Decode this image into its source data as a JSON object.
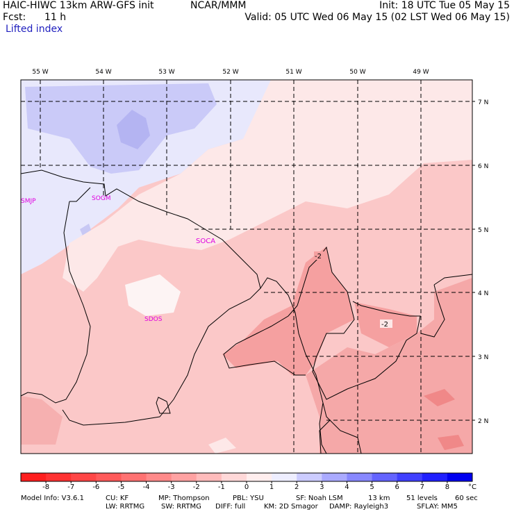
{
  "header": {
    "title_left": "HAIC-HIWC 13km ARW-GFS init",
    "org": "NCAR/MMM",
    "init": "Init: 18 UTC Tue 05 May 15",
    "fcst_label": "Fcst:",
    "fcst_value": "11 h",
    "valid": "Valid: 05 UTC Wed 06 May 15 (02 LST Wed 06 May 15)",
    "field": "Lifted index"
  },
  "map": {
    "lon_labels": [
      "55 W",
      "54 W",
      "53 W",
      "52 W",
      "51 W",
      "50 W",
      "49 W"
    ],
    "lat_labels": [
      "7 N",
      "6 N",
      "5 N",
      "4 N",
      "3 N",
      "2 N"
    ],
    "stations": [
      "SMJP",
      "SOGM",
      "SOCA",
      "SDOS"
    ],
    "contour_labels": [
      "-2",
      "-2"
    ]
  },
  "colorbar": {
    "ticks": [
      "-8",
      "-7",
      "-6",
      "-5",
      "-4",
      "-3",
      "-2",
      "-1",
      "0",
      "1",
      "2",
      "3",
      "4",
      "5",
      "6",
      "7",
      "8"
    ],
    "unit": "°C",
    "colors": [
      "#ff1e1e",
      "#ff3232",
      "#ff4646",
      "#ff5a5a",
      "#ff7272",
      "#ff8a8a",
      "#ffa2a2",
      "#ffbcbc",
      "#ffd8d8",
      "#ffeeee",
      "#eeeeff",
      "#ccccff",
      "#aaaaff",
      "#8888ff",
      "#6464ff",
      "#4040ff",
      "#2020ff",
      "#0000f0"
    ]
  },
  "footer": {
    "line1": [
      "Model Info: V3.6.1",
      "CU: KF",
      "MP: Thompson",
      "PBL: YSU",
      "SF: Noah LSM",
      "13 km",
      "51 levels",
      "60 sec"
    ],
    "line2": [
      "LW: RRTMG",
      "SW: RRTMG",
      "DIFF: full",
      "KM: 2D Smagor",
      "DAMP: Rayleigh3",
      "SFLAY: MM5"
    ]
  }
}
